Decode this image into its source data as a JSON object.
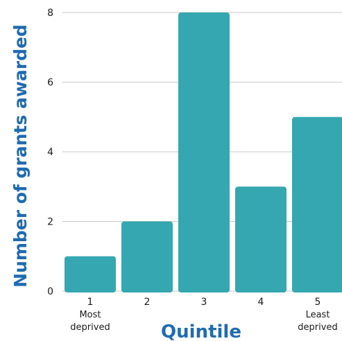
{
  "chart_data": {
    "type": "bar",
    "categories": [
      "1",
      "2",
      "3",
      "4",
      "5"
    ],
    "category_sublabels": [
      "Most\ndeprived",
      "",
      "",
      "",
      "Least\ndeprived"
    ],
    "values": [
      1,
      2,
      8,
      3,
      5
    ],
    "title": "",
    "xlabel": "Quintile",
    "ylabel": "Number of grants awarded",
    "ylim": [
      0,
      8
    ],
    "yticks": [
      0,
      2,
      4,
      6,
      8
    ],
    "grid": true,
    "legend": "none",
    "colors": {
      "bar": "#35a7b0",
      "axis_title": "#1f6bb0",
      "grid": "#c8c8c8",
      "text": "#1a1a1a"
    }
  }
}
